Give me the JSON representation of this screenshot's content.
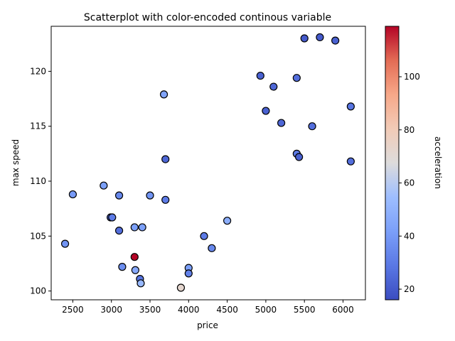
{
  "chart_data": {
    "type": "scatter",
    "title": "Scatterplot with color-encoded continous variable",
    "xlabel": "price",
    "ylabel": "max speed",
    "xlim": [
      2220,
      6290
    ],
    "ylim": [
      99.2,
      124.1
    ],
    "xticks": [
      2500,
      3000,
      3500,
      4000,
      4500,
      5000,
      5500,
      6000
    ],
    "xtick_labels": [
      "2500",
      "3000",
      "3500",
      "4000",
      "4500",
      "5000",
      "5500",
      "6000"
    ],
    "yticks": [
      100,
      105,
      110,
      115,
      120
    ],
    "ytick_labels": [
      "100",
      "105",
      "110",
      "115",
      "120"
    ],
    "grid": false,
    "colormap": "coolwarm",
    "colorbar": {
      "label": "acceleration",
      "range": [
        16,
        119
      ],
      "ticks": [
        20,
        40,
        60,
        80,
        100
      ],
      "tick_labels": [
        "20",
        "40",
        "60",
        "80",
        "100"
      ]
    },
    "points": [
      {
        "x": 2400,
        "y": 104.3,
        "c": 38
      },
      {
        "x": 2500,
        "y": 108.8,
        "c": 40
      },
      {
        "x": 2900,
        "y": 109.6,
        "c": 42
      },
      {
        "x": 2990,
        "y": 106.7,
        "c": 24
      },
      {
        "x": 3010,
        "y": 106.7,
        "c": 30
      },
      {
        "x": 3100,
        "y": 105.5,
        "c": 26
      },
      {
        "x": 3100,
        "y": 108.7,
        "c": 34
      },
      {
        "x": 3140,
        "y": 102.2,
        "c": 36
      },
      {
        "x": 3300,
        "y": 105.8,
        "c": 42
      },
      {
        "x": 3300,
        "y": 103.1,
        "c": 119
      },
      {
        "x": 3310,
        "y": 101.9,
        "c": 46
      },
      {
        "x": 3370,
        "y": 101.1,
        "c": 28
      },
      {
        "x": 3380,
        "y": 100.7,
        "c": 52
      },
      {
        "x": 3400,
        "y": 105.8,
        "c": 42
      },
      {
        "x": 3500,
        "y": 108.7,
        "c": 38
      },
      {
        "x": 3680,
        "y": 117.9,
        "c": 44
      },
      {
        "x": 3700,
        "y": 112.0,
        "c": 24
      },
      {
        "x": 3700,
        "y": 108.3,
        "c": 30
      },
      {
        "x": 3900,
        "y": 100.3,
        "c": 72
      },
      {
        "x": 4000,
        "y": 102.1,
        "c": 42
      },
      {
        "x": 4000,
        "y": 101.6,
        "c": 32
      },
      {
        "x": 4200,
        "y": 105.0,
        "c": 30
      },
      {
        "x": 4300,
        "y": 103.9,
        "c": 34
      },
      {
        "x": 4500,
        "y": 106.4,
        "c": 48
      },
      {
        "x": 4930,
        "y": 119.6,
        "c": 22
      },
      {
        "x": 5000,
        "y": 116.4,
        "c": 22
      },
      {
        "x": 5100,
        "y": 118.6,
        "c": 24
      },
      {
        "x": 5200,
        "y": 115.3,
        "c": 24
      },
      {
        "x": 5400,
        "y": 119.4,
        "c": 26
      },
      {
        "x": 5400,
        "y": 112.5,
        "c": 30
      },
      {
        "x": 5430,
        "y": 112.2,
        "c": 22
      },
      {
        "x": 5500,
        "y": 123.0,
        "c": 20
      },
      {
        "x": 5600,
        "y": 115.0,
        "c": 26
      },
      {
        "x": 5700,
        "y": 123.1,
        "c": 20
      },
      {
        "x": 5900,
        "y": 122.8,
        "c": 22
      },
      {
        "x": 6100,
        "y": 116.8,
        "c": 28
      },
      {
        "x": 6100,
        "y": 111.8,
        "c": 26
      }
    ]
  }
}
